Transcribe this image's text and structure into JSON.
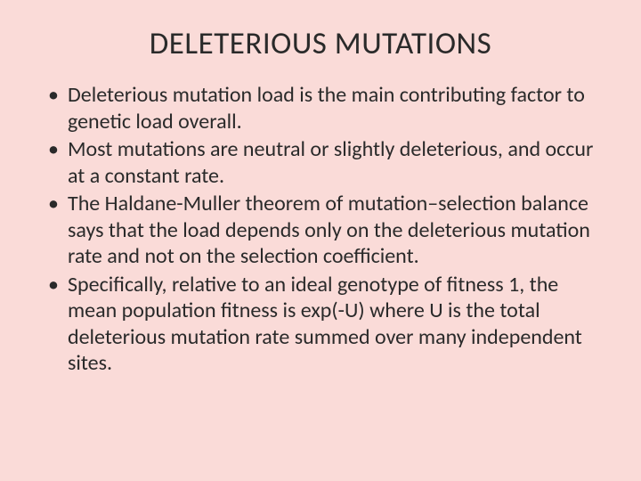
{
  "slide": {
    "title": "DELETERIOUS MUTATIONS",
    "bullets": [
      "Deleterious mutation load is the main contributing factor to genetic load overall.",
      "Most mutations are neutral or slightly deleterious, and occur at a constant rate.",
      "The Haldane-Muller theorem of mutation–selection balance says that the load depends only on the deleterious mutation rate and not on the selection coefficient.",
      " Specifically, relative to an ideal genotype of fitness 1, the mean population fitness is exp(-U) where U is the total deleterious mutation rate summed over many independent sites."
    ],
    "background_color": "#fadbd8",
    "text_color": "#2a2a2a",
    "title_fontsize": 35,
    "body_fontsize": 24
  }
}
